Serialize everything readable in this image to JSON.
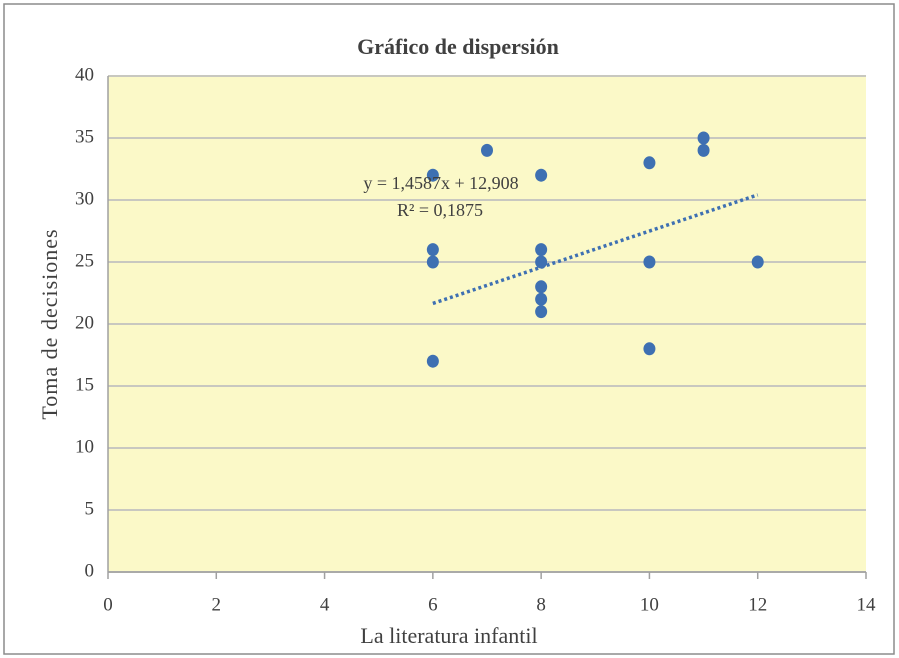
{
  "chart_data": {
    "type": "scatter",
    "title": "Gráfico de dispersión",
    "x_label": "La literatura infantil",
    "y_label": "Toma de decisiones",
    "x": [
      6,
      6,
      6,
      6,
      7,
      8,
      8,
      8,
      8,
      8,
      8,
      10,
      10,
      10,
      11,
      11,
      12
    ],
    "y": [
      32,
      26,
      25,
      17,
      34,
      32,
      26,
      25,
      23,
      22,
      21,
      33,
      25,
      18,
      35,
      34,
      25
    ],
    "color": "#3e70b2",
    "xlim": [
      0,
      14
    ],
    "ylim": [
      0,
      40
    ],
    "xticks": [
      0,
      2,
      4,
      6,
      8,
      10,
      12,
      14
    ],
    "yticks": [
      0,
      5,
      10,
      15,
      20,
      25,
      30,
      35,
      40
    ],
    "grid": true,
    "plot_background": "#fbf9c8",
    "trendline": {
      "equation": "y = 1,4587x  + 12,908",
      "r_squared_label": "R² = 0,1875",
      "slope": 1.4587,
      "intercept": 12.908
    }
  }
}
